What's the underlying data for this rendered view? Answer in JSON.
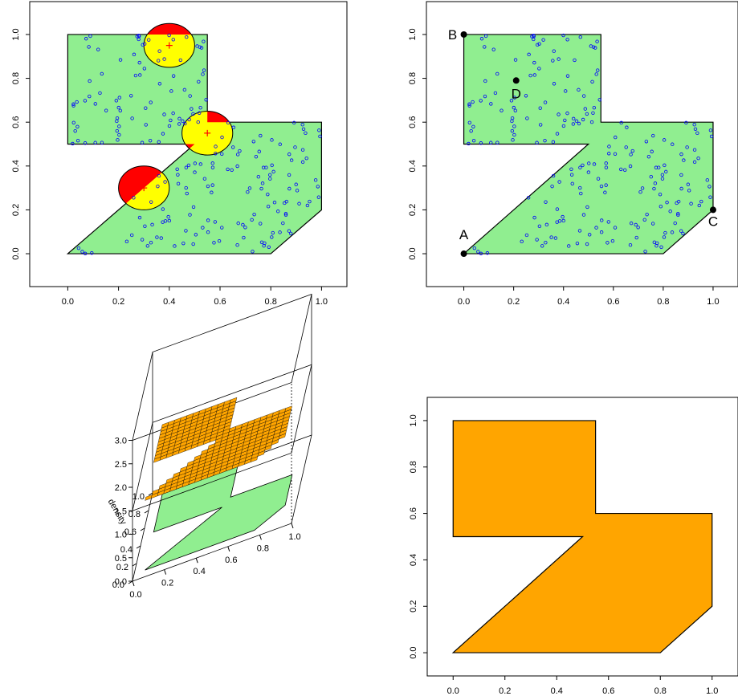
{
  "chart_data": [
    {
      "type": "scatter",
      "panel": "top-left",
      "xlim": [
        -0.15,
        1.1
      ],
      "ylim": [
        -0.15,
        1.15
      ],
      "x_ticks": [
        "0.0",
        "0.2",
        "0.4",
        "0.6",
        "0.8",
        "1.0"
      ],
      "y_ticks": [
        "0.0",
        "0.2",
        "0.4",
        "0.6",
        "0.8",
        "1.0"
      ],
      "polygon": [
        [
          0,
          0
        ],
        [
          0.8,
          0
        ],
        [
          1,
          0.2
        ],
        [
          1,
          0.6
        ],
        [
          0.55,
          0.6
        ],
        [
          0.55,
          1
        ],
        [
          0,
          1
        ],
        [
          0,
          0.5
        ],
        [
          0.5,
          0.5
        ]
      ],
      "polygon_color": "#90EE90",
      "point_color": "#0000FF",
      "n_points": 220,
      "discs": [
        {
          "center": [
            0.4,
            0.95
          ],
          "radius": 0.1
        },
        {
          "center": [
            0.55,
            0.55
          ],
          "radius": 0.1
        },
        {
          "center": [
            0.3,
            0.3
          ],
          "radius": 0.1
        }
      ],
      "inside_color": "#FFFF00",
      "outside_color": "#FF0000",
      "center_marker_color": "#FF0000"
    },
    {
      "type": "scatter",
      "panel": "top-right",
      "xlim": [
        -0.15,
        1.1
      ],
      "ylim": [
        -0.15,
        1.15
      ],
      "x_ticks": [
        "0.0",
        "0.2",
        "0.4",
        "0.6",
        "0.8",
        "1.0"
      ],
      "y_ticks": [
        "0.0",
        "0.2",
        "0.4",
        "0.6",
        "0.8",
        "1.0"
      ],
      "polygon": [
        [
          0,
          0
        ],
        [
          0.8,
          0
        ],
        [
          1,
          0.2
        ],
        [
          1,
          0.6
        ],
        [
          0.55,
          0.6
        ],
        [
          0.55,
          1
        ],
        [
          0,
          1
        ],
        [
          0,
          0.5
        ],
        [
          0.5,
          0.5
        ]
      ],
      "polygon_color": "#90EE90",
      "point_color": "#0000FF",
      "n_points": 220,
      "labeled_points": [
        {
          "label": "A",
          "x": 0.0,
          "y": 0.0
        },
        {
          "label": "B",
          "x": 0.0,
          "y": 1.0
        },
        {
          "label": "C",
          "x": 1.0,
          "y": 0.2
        },
        {
          "label": "D",
          "x": 0.21,
          "y": 0.79
        }
      ]
    },
    {
      "type": "surface3d",
      "panel": "bottom-left",
      "zlabel": "density",
      "z_ticks": [
        "0.0",
        "0.5",
        "1.0",
        "1.5",
        "2.0",
        "2.5",
        "3.0"
      ],
      "x_ticks": [
        "0.0",
        "0.2",
        "0.4",
        "0.6",
        "0.8",
        "1.0"
      ],
      "y_ticks": [
        "0.0",
        "0.2",
        "0.4",
        "0.6",
        "0.8",
        "1.0"
      ],
      "density_value": 1.5,
      "surface_color": "#FFA500",
      "floor_polygon_color": "#90EE90"
    },
    {
      "type": "polygon",
      "panel": "bottom-right",
      "xlim": [
        -0.1,
        1.1
      ],
      "ylim": [
        -0.1,
        1.1
      ],
      "x_ticks": [
        "0.0",
        "0.2",
        "0.4",
        "0.6",
        "0.8",
        "1.0"
      ],
      "y_ticks": [
        "0.0",
        "0.2",
        "0.4",
        "0.6",
        "0.8",
        "1.0"
      ],
      "polygon": [
        [
          0,
          0
        ],
        [
          0.8,
          0
        ],
        [
          1,
          0.2
        ],
        [
          1,
          0.6
        ],
        [
          0.55,
          0.6
        ],
        [
          0.55,
          1
        ],
        [
          0,
          1
        ],
        [
          0,
          0.5
        ],
        [
          0.5,
          0.5
        ]
      ],
      "polygon_color": "#FFA500"
    }
  ]
}
